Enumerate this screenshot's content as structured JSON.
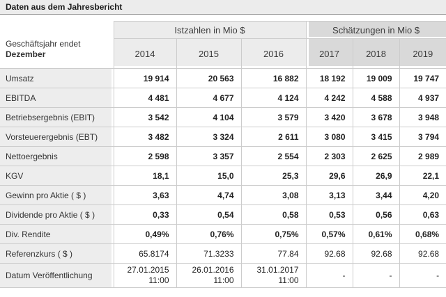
{
  "title": "Daten aus dem Jahresbericht",
  "colors": {
    "title_bar_bg": "#ececec",
    "title_bar_border": "#8c8c8c",
    "header_actuals_bg": "#ececec",
    "header_estimates_bg": "#d9d9d9",
    "row_label_bg": "#ededed",
    "grid_border": "#cccccc",
    "text": "#333333"
  },
  "table": {
    "corner_label_line1": "Geschäftsjahr endet",
    "corner_label_line2": "Dezember",
    "groups": [
      {
        "label": "Istzahlen in Mio $",
        "years": [
          "2014",
          "2015",
          "2016"
        ]
      },
      {
        "label": "Schätzungen in Mio $",
        "years": [
          "2017",
          "2018",
          "2019"
        ]
      }
    ],
    "rows": [
      {
        "label": "Umsatz",
        "bold": true,
        "values": [
          "19 914",
          "20 563",
          "16 882",
          "18 192",
          "19 009",
          "19 747"
        ]
      },
      {
        "label": "EBITDA",
        "bold": true,
        "values": [
          "4 481",
          "4 677",
          "4 124",
          "4 242",
          "4 588",
          "4 937"
        ]
      },
      {
        "label": "Betriebsergebnis (EBIT)",
        "bold": true,
        "values": [
          "3 542",
          "4 104",
          "3 579",
          "3 420",
          "3 678",
          "3 948"
        ]
      },
      {
        "label": "Vorsteuerergebnis (EBT)",
        "bold": true,
        "values": [
          "3 482",
          "3 324",
          "2 611",
          "3 080",
          "3 415",
          "3 794"
        ]
      },
      {
        "label": "Nettoergebnis",
        "bold": true,
        "values": [
          "2 598",
          "3 357",
          "2 554",
          "2 303",
          "2 625",
          "2 989"
        ]
      },
      {
        "label": "KGV",
        "bold": true,
        "values": [
          "18,1",
          "15,0",
          "25,3",
          "29,6",
          "26,9",
          "22,1"
        ]
      },
      {
        "label": "Gewinn pro Aktie ( $ )",
        "bold": true,
        "values": [
          "3,63",
          "4,74",
          "3,08",
          "3,13",
          "3,44",
          "4,20"
        ]
      },
      {
        "label": "Dividende pro Aktie ( $ )",
        "bold": true,
        "values": [
          "0,33",
          "0,54",
          "0,58",
          "0,53",
          "0,56",
          "0,63"
        ]
      },
      {
        "label": "Div. Rendite",
        "bold": true,
        "values": [
          "0,49%",
          "0,76%",
          "0,75%",
          "0,57%",
          "0,61%",
          "0,68%"
        ]
      },
      {
        "label": "Referenzkurs ( $ )",
        "bold": false,
        "values": [
          "65.8174",
          "71.3233",
          "77.84",
          "92.68",
          "92.68",
          "92.68"
        ]
      },
      {
        "label": "Datum Veröffentlichung",
        "bold": false,
        "multiline": true,
        "values": [
          [
            "27.01.2015",
            "11:00"
          ],
          [
            "26.01.2016",
            "11:00"
          ],
          [
            "31.01.2017",
            "11:00"
          ],
          [
            "-"
          ],
          [
            "-"
          ],
          [
            "-"
          ]
        ]
      }
    ]
  }
}
